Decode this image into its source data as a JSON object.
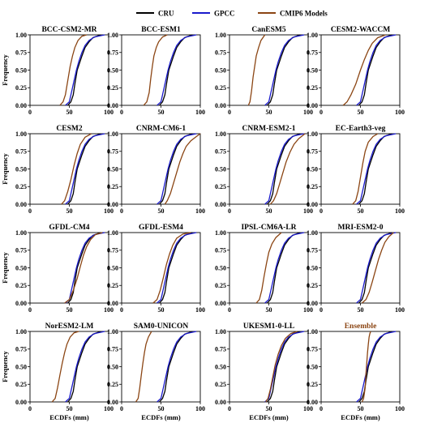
{
  "legend": [
    {
      "label": "CRU",
      "color": "#000000"
    },
    {
      "label": "GPCC",
      "color": "#1a1acc"
    },
    {
      "label": "CMIP6 Models",
      "color": "#8b4513"
    }
  ],
  "chart_data": {
    "type": "line",
    "description": "4x4 grid of ECDF panels",
    "xlabel": "ECDFs (mm)",
    "ylabel": "Frequency",
    "xlim": [
      0,
      100
    ],
    "ylim": [
      0,
      1
    ],
    "xticks": [
      0,
      50,
      100
    ],
    "yticks": [
      "0.00",
      "0.25",
      "0.50",
      "0.75",
      "1.00"
    ],
    "reference_series": {
      "CRU": [
        [
          48,
          0
        ],
        [
          52,
          0.05
        ],
        [
          55,
          0.15
        ],
        [
          57,
          0.3
        ],
        [
          60,
          0.5
        ],
        [
          63,
          0.6
        ],
        [
          66,
          0.7
        ],
        [
          70,
          0.82
        ],
        [
          75,
          0.9
        ],
        [
          80,
          0.96
        ],
        [
          90,
          1.0
        ]
      ],
      "GPCC": [
        [
          45,
          0
        ],
        [
          50,
          0.05
        ],
        [
          53,
          0.2
        ],
        [
          56,
          0.35
        ],
        [
          59,
          0.5
        ],
        [
          62,
          0.62
        ],
        [
          66,
          0.75
        ],
        [
          70,
          0.85
        ],
        [
          75,
          0.92
        ],
        [
          82,
          0.97
        ],
        [
          95,
          1.0
        ]
      ]
    },
    "panels": [
      {
        "title": "BCC-CSM2-MR",
        "title_color": "#000000",
        "model": [
          [
            38,
            0
          ],
          [
            42,
            0.05
          ],
          [
            45,
            0.15
          ],
          [
            48,
            0.35
          ],
          [
            51,
            0.55
          ],
          [
            54,
            0.7
          ],
          [
            57,
            0.82
          ],
          [
            61,
            0.92
          ],
          [
            66,
            0.98
          ],
          [
            72,
            1.0
          ]
        ]
      },
      {
        "title": "BCC-ESM1",
        "title_color": "#000000",
        "model": [
          [
            28,
            0
          ],
          [
            32,
            0.05
          ],
          [
            35,
            0.18
          ],
          [
            37,
            0.38
          ],
          [
            39,
            0.55
          ],
          [
            41,
            0.7
          ],
          [
            44,
            0.82
          ],
          [
            47,
            0.9
          ],
          [
            52,
            0.97
          ],
          [
            58,
            1.0
          ]
        ]
      },
      {
        "title": "CanESM5",
        "title_color": "#000000",
        "model": [
          [
            24,
            0
          ],
          [
            26,
            0.05
          ],
          [
            28,
            0.2
          ],
          [
            30,
            0.4
          ],
          [
            32,
            0.55
          ],
          [
            34,
            0.7
          ],
          [
            37,
            0.82
          ],
          [
            40,
            0.92
          ],
          [
            45,
            1.0
          ]
        ]
      },
      {
        "title": "CESM2-WACCM",
        "title_color": "#000000",
        "model": [
          [
            28,
            0
          ],
          [
            33,
            0.05
          ],
          [
            38,
            0.15
          ],
          [
            44,
            0.3
          ],
          [
            50,
            0.5
          ],
          [
            55,
            0.65
          ],
          [
            60,
            0.78
          ],
          [
            65,
            0.88
          ],
          [
            72,
            0.96
          ],
          [
            82,
            1.0
          ]
        ]
      },
      {
        "title": "CESM2",
        "title_color": "#000000",
        "model": [
          [
            40,
            0
          ],
          [
            44,
            0.05
          ],
          [
            48,
            0.18
          ],
          [
            52,
            0.35
          ],
          [
            56,
            0.55
          ],
          [
            60,
            0.72
          ],
          [
            64,
            0.85
          ],
          [
            70,
            0.95
          ],
          [
            78,
            1.0
          ]
        ]
      },
      {
        "title": "CNRM-CM6-1",
        "title_color": "#000000",
        "model": [
          [
            55,
            0
          ],
          [
            58,
            0.05
          ],
          [
            62,
            0.15
          ],
          [
            66,
            0.3
          ],
          [
            70,
            0.45
          ],
          [
            74,
            0.6
          ],
          [
            78,
            0.72
          ],
          [
            82,
            0.82
          ],
          [
            88,
            0.9
          ],
          [
            95,
            0.96
          ],
          [
            100,
            1.0
          ]
        ]
      },
      {
        "title": "CNRM-ESM2-1",
        "title_color": "#000000",
        "model": [
          [
            52,
            0
          ],
          [
            56,
            0.05
          ],
          [
            60,
            0.15
          ],
          [
            64,
            0.3
          ],
          [
            68,
            0.45
          ],
          [
            72,
            0.6
          ],
          [
            77,
            0.74
          ],
          [
            82,
            0.85
          ],
          [
            88,
            0.93
          ],
          [
            96,
            1.0
          ]
        ]
      },
      {
        "title": "EC-Earth3-veg",
        "title_color": "#000000",
        "model": [
          [
            40,
            0
          ],
          [
            44,
            0.05
          ],
          [
            47,
            0.18
          ],
          [
            50,
            0.38
          ],
          [
            53,
            0.58
          ],
          [
            56,
            0.75
          ],
          [
            60,
            0.88
          ],
          [
            66,
            0.96
          ],
          [
            72,
            1.0
          ]
        ]
      },
      {
        "title": "GFDL-CM4",
        "title_color": "#000000",
        "model": [
          [
            44,
            0
          ],
          [
            50,
            0.05
          ],
          [
            55,
            0.18
          ],
          [
            60,
            0.35
          ],
          [
            64,
            0.52
          ],
          [
            68,
            0.68
          ],
          [
            72,
            0.8
          ],
          [
            77,
            0.9
          ],
          [
            83,
            0.97
          ],
          [
            92,
            1.0
          ]
        ]
      },
      {
        "title": "GFDL-ESM4",
        "title_color": "#000000",
        "model": [
          [
            40,
            0
          ],
          [
            45,
            0.05
          ],
          [
            49,
            0.18
          ],
          [
            53,
            0.36
          ],
          [
            57,
            0.55
          ],
          [
            61,
            0.7
          ],
          [
            65,
            0.82
          ],
          [
            70,
            0.92
          ],
          [
            78,
            0.98
          ],
          [
            88,
            1.0
          ]
        ]
      },
      {
        "title": "IPSL-CM6A-LR",
        "title_color": "#000000",
        "model": [
          [
            34,
            0
          ],
          [
            38,
            0.05
          ],
          [
            41,
            0.18
          ],
          [
            44,
            0.38
          ],
          [
            47,
            0.56
          ],
          [
            50,
            0.72
          ],
          [
            54,
            0.84
          ],
          [
            59,
            0.93
          ],
          [
            66,
            1.0
          ]
        ]
      },
      {
        "title": "MRI-ESM2-0",
        "title_color": "#000000",
        "model": [
          [
            52,
            0
          ],
          [
            57,
            0.05
          ],
          [
            61,
            0.15
          ],
          [
            65,
            0.3
          ],
          [
            69,
            0.46
          ],
          [
            73,
            0.62
          ],
          [
            77,
            0.75
          ],
          [
            81,
            0.86
          ],
          [
            86,
            0.94
          ],
          [
            92,
            1.0
          ]
        ]
      },
      {
        "title": "NorESM2-LM",
        "title_color": "#000000",
        "model": [
          [
            28,
            0
          ],
          [
            32,
            0.05
          ],
          [
            35,
            0.2
          ],
          [
            38,
            0.38
          ],
          [
            41,
            0.55
          ],
          [
            44,
            0.7
          ],
          [
            47,
            0.82
          ],
          [
            51,
            0.92
          ],
          [
            56,
            0.98
          ],
          [
            62,
            1.0
          ]
        ]
      },
      {
        "title": "SAM0-UNICON",
        "title_color": "#000000",
        "model": [
          [
            18,
            0
          ],
          [
            21,
            0.05
          ],
          [
            23,
            0.2
          ],
          [
            25,
            0.38
          ],
          [
            27,
            0.55
          ],
          [
            29,
            0.7
          ],
          [
            31,
            0.82
          ],
          [
            34,
            0.92
          ],
          [
            38,
            1.0
          ]
        ]
      },
      {
        "title": "UKESM1-0-LL",
        "title_color": "#000000",
        "model": [
          [
            46,
            0
          ],
          [
            49,
            0.05
          ],
          [
            52,
            0.18
          ],
          [
            55,
            0.35
          ],
          [
            58,
            0.52
          ],
          [
            62,
            0.68
          ],
          [
            66,
            0.8
          ],
          [
            71,
            0.9
          ],
          [
            78,
            0.97
          ],
          [
            86,
            1.0
          ]
        ]
      },
      {
        "title": "Ensemble",
        "title_color": "#8b4513",
        "model": [
          [
            52,
            0
          ],
          [
            54,
            0.05
          ],
          [
            56,
            0.2
          ],
          [
            57,
            0.4
          ],
          [
            58,
            0.55
          ],
          [
            59,
            0.7
          ],
          [
            60,
            0.82
          ],
          [
            61,
            0.92
          ],
          [
            62,
            0.97
          ],
          [
            63,
            1.0
          ]
        ]
      }
    ]
  }
}
